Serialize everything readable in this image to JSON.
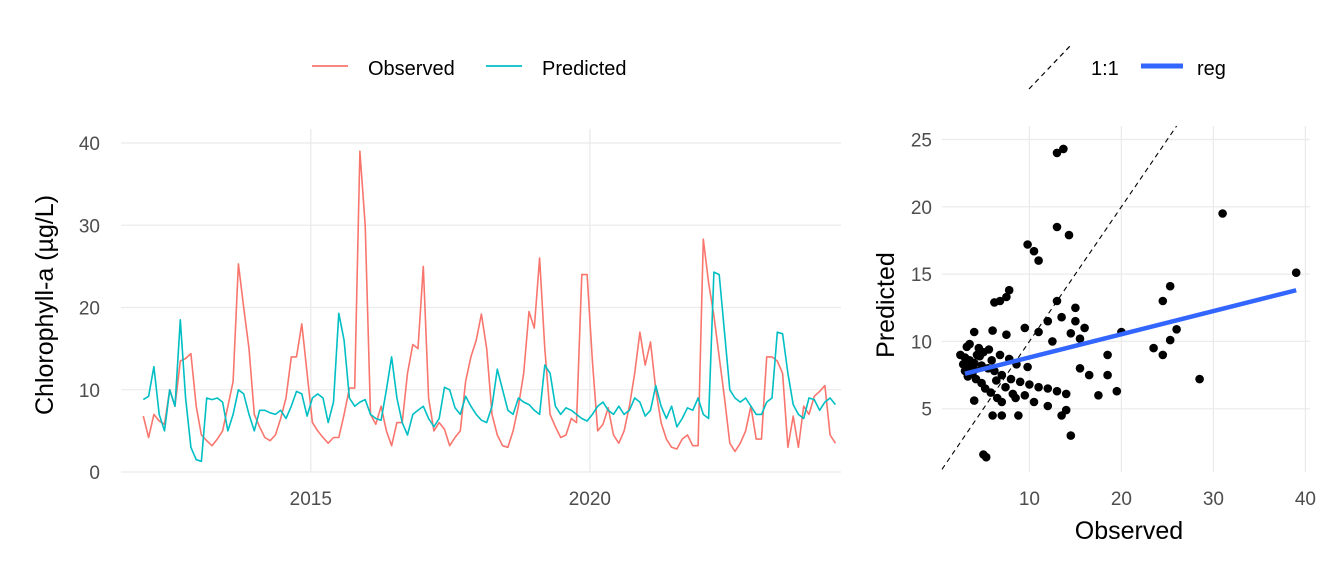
{
  "chart_data": [
    {
      "type": "line",
      "title": "",
      "xlabel": "",
      "ylabel": "Chlorophyll-a (µg/L)",
      "ylim": [
        0,
        40
      ],
      "xlim": [
        2011.6,
        2024.5
      ],
      "x_ticks": [
        "2015",
        "2020"
      ],
      "x_tick_values": [
        2015,
        2020
      ],
      "y_ticks": [
        "0",
        "10",
        "20",
        "30",
        "40"
      ],
      "grid": true,
      "legend": "top",
      "x": [
        2012.0,
        2012.1,
        2012.2,
        2012.3,
        2012.4,
        2012.5,
        2012.6,
        2012.7,
        2012.8,
        2012.9,
        2013.0,
        2013.1,
        2013.2,
        2013.3,
        2013.4,
        2013.5,
        2013.6,
        2013.7,
        2013.8,
        2013.9,
        2014.0,
        2014.1,
        2014.2,
        2014.3,
        2014.4,
        2014.5,
        2014.6,
        2014.7,
        2014.8,
        2014.9,
        2015.0,
        2015.1,
        2015.2,
        2015.3,
        2015.4,
        2015.5,
        2015.6,
        2015.7,
        2015.8,
        2015.9,
        2016.0,
        2016.1,
        2016.2,
        2016.3,
        2016.4,
        2016.5,
        2016.6,
        2016.7,
        2016.8,
        2016.9,
        2017.0,
        2017.1,
        2017.2,
        2017.3,
        2017.4,
        2017.5,
        2017.6,
        2017.7,
        2017.8,
        2017.9,
        2018.0,
        2018.1,
        2018.2,
        2018.3,
        2018.4,
        2018.5,
        2018.6,
        2018.7,
        2018.8,
        2018.9,
        2019.0,
        2019.1,
        2019.2,
        2019.3,
        2019.4,
        2019.5,
        2019.6,
        2019.7,
        2019.8,
        2019.9,
        2020.0,
        2020.1,
        2020.2,
        2020.3,
        2020.4,
        2020.5,
        2020.6,
        2020.7,
        2020.8,
        2020.9,
        2021.0,
        2021.1,
        2021.2,
        2021.3,
        2021.4,
        2021.5,
        2021.6,
        2021.7,
        2021.8,
        2021.9,
        2022.0,
        2022.1,
        2022.2,
        2022.3,
        2022.4,
        2022.5,
        2022.6,
        2022.7,
        2022.8,
        2022.9,
        2023.0,
        2023.1,
        2023.2,
        2023.3,
        2023.4,
        2023.5,
        2023.6,
        2023.7,
        2023.8,
        2023.9
      ],
      "series": [
        {
          "name": "Observed",
          "color": "#F8766D",
          "values": [
            6.8,
            4.2,
            7.0,
            6.2,
            5.8,
            10.0,
            8.0,
            13.5,
            13.8,
            14.4,
            8.0,
            4.5,
            3.8,
            3.2,
            4.0,
            5.0,
            8.0,
            11.0,
            25.3,
            20.0,
            15.0,
            7.0,
            5.5,
            4.2,
            3.8,
            4.5,
            6.5,
            9.0,
            14.0,
            14.0,
            18.0,
            12.0,
            6.0,
            5.0,
            4.2,
            3.5,
            4.2,
            4.2,
            7.0,
            10.2,
            10.2,
            39.0,
            30.0,
            7.0,
            5.8,
            8.0,
            5.0,
            3.2,
            6.0,
            6.0,
            12.0,
            15.5,
            15.0,
            25.0,
            9.0,
            5.0,
            6.0,
            5.2,
            3.2,
            4.2,
            5.0,
            11.0,
            14.0,
            16.0,
            19.2,
            15.0,
            7.0,
            4.5,
            3.2,
            3.0,
            5.0,
            8.0,
            12.0,
            19.5,
            17.5,
            26.0,
            15.0,
            7.0,
            5.5,
            4.2,
            4.5,
            6.5,
            6.0,
            24.0,
            24.0,
            13.5,
            5.0,
            5.8,
            7.8,
            4.5,
            3.5,
            5.0,
            8.0,
            12.0,
            17.0,
            13.0,
            15.8,
            10.0,
            6.0,
            4.0,
            3.0,
            2.8,
            4.0,
            4.5,
            3.2,
            3.2,
            28.3,
            23.0,
            19.0,
            14.0,
            9.0,
            3.5,
            2.5,
            3.5,
            5.0,
            8.0,
            4.0,
            4.0,
            14.0,
            14.0
          ],
          "values_tail": [
            13.5,
            12.0,
            3.0,
            6.8,
            3.0,
            8.0,
            7.0,
            9.2,
            9.8,
            10.5,
            4.5,
            3.5
          ]
        },
        {
          "name": "Predicted",
          "color": "#00BFC4",
          "values": [
            8.8,
            9.2,
            12.8,
            7.0,
            5.0,
            10.0,
            8.0,
            18.5,
            9.0,
            3.0,
            1.5,
            1.3,
            9.0,
            8.8,
            9.0,
            8.5,
            5.0,
            7.0,
            10.0,
            9.5,
            7.0,
            5.0,
            7.5,
            7.5,
            7.2,
            7.0,
            7.5,
            6.5,
            8.0,
            9.8,
            9.5,
            6.8,
            9.0,
            9.5,
            9.0,
            6.0,
            8.5,
            19.3,
            16.0,
            9.0,
            8.0,
            8.5,
            8.8,
            7.0,
            6.5,
            6.3,
            10.0,
            14.0,
            9.0,
            6.0,
            4.5,
            7.0,
            7.5,
            8.0,
            6.5,
            5.5,
            6.5,
            10.3,
            10.0,
            7.8,
            7.0,
            9.2,
            8.0,
            7.0,
            6.3,
            6.0,
            8.0,
            12.5,
            10.0,
            7.5,
            7.0,
            9.0,
            8.5,
            8.2,
            7.5,
            7.0,
            13.0,
            12.0,
            8.0,
            7.0,
            7.8,
            7.5,
            7.0,
            6.5,
            6.2,
            7.0,
            8.0,
            8.5,
            7.5,
            7.0,
            8.0,
            7.0,
            7.5,
            9.0,
            8.5,
            6.8,
            7.5,
            10.5,
            8.0,
            6.5,
            8.0,
            5.5,
            6.5,
            7.8,
            7.5,
            9.0,
            7.0,
            6.5,
            24.3,
            24.0,
            17.0,
            10.0,
            9.0,
            8.5,
            9.0,
            8.0,
            7.0,
            7.0,
            8.5,
            9.0
          ],
          "values_tail": [
            17.0,
            16.8,
            12.0,
            8.2,
            7.0,
            6.5,
            9.0,
            8.8,
            7.5,
            8.5,
            9.0,
            8.2
          ]
        }
      ]
    },
    {
      "type": "scatter",
      "title": "",
      "xlabel": "Observed",
      "ylabel": "Predicted",
      "xlim": [
        0.5,
        40.5
      ],
      "ylim": [
        0.3,
        26.0
      ],
      "x_ticks": [
        "10",
        "20",
        "30",
        "40"
      ],
      "y_ticks": [
        "5",
        "10",
        "15",
        "20",
        "25"
      ],
      "grid": true,
      "legend": "top",
      "legend_entries": [
        {
          "name": "1:1",
          "style": "dashed",
          "color": "#000000"
        },
        {
          "name": "reg",
          "style": "solid",
          "color": "#3366FF"
        }
      ],
      "reference_line": {
        "name": "1:1",
        "slope": 1,
        "intercept": 0
      },
      "regression_line": {
        "name": "reg",
        "x": [
          3.0,
          39.0
        ],
        "y": [
          7.6,
          13.8
        ]
      },
      "points": [
        [
          13.0,
          24.0
        ],
        [
          13.7,
          24.3
        ],
        [
          31.0,
          19.5
        ],
        [
          13.0,
          18.5
        ],
        [
          14.3,
          17.9
        ],
        [
          9.8,
          17.2
        ],
        [
          10.5,
          16.7
        ],
        [
          11.0,
          16.0
        ],
        [
          7.8,
          13.8
        ],
        [
          7.5,
          13.3
        ],
        [
          6.8,
          13.0
        ],
        [
          6.2,
          12.9
        ],
        [
          15.0,
          12.5
        ],
        [
          13.0,
          13.0
        ],
        [
          24.5,
          13.0
        ],
        [
          25.3,
          14.1
        ],
        [
          39.0,
          15.1
        ],
        [
          12.0,
          11.5
        ],
        [
          13.5,
          11.8
        ],
        [
          15.0,
          11.5
        ],
        [
          16.0,
          11.0
        ],
        [
          20.0,
          10.7
        ],
        [
          26.0,
          10.9
        ],
        [
          25.3,
          10.1
        ],
        [
          23.5,
          9.5
        ],
        [
          24.5,
          9.0
        ],
        [
          18.5,
          9.0
        ],
        [
          12.5,
          10.0
        ],
        [
          11.0,
          10.7
        ],
        [
          9.5,
          11.0
        ],
        [
          14.5,
          10.6
        ],
        [
          15.5,
          10.2
        ],
        [
          4.0,
          10.7
        ],
        [
          6.0,
          10.8
        ],
        [
          7.5,
          10.5
        ],
        [
          3.5,
          9.8
        ],
        [
          4.5,
          9.5
        ],
        [
          5.0,
          9.2
        ],
        [
          2.5,
          9.0
        ],
        [
          3.0,
          8.8
        ],
        [
          3.5,
          8.6
        ],
        [
          4.0,
          8.4
        ],
        [
          4.8,
          8.2
        ],
        [
          5.5,
          8.0
        ],
        [
          6.2,
          7.8
        ],
        [
          7.0,
          7.5
        ],
        [
          8.0,
          7.2
        ],
        [
          9.0,
          7.0
        ],
        [
          10.0,
          6.8
        ],
        [
          11.0,
          6.6
        ],
        [
          12.0,
          6.5
        ],
        [
          13.0,
          6.3
        ],
        [
          14.0,
          6.1
        ],
        [
          15.5,
          8.0
        ],
        [
          16.5,
          7.5
        ],
        [
          17.5,
          6.0
        ],
        [
          19.5,
          6.3
        ],
        [
          18.5,
          7.5
        ],
        [
          28.5,
          7.2
        ],
        [
          3.0,
          7.8
        ],
        [
          3.8,
          7.6
        ],
        [
          4.2,
          7.2
        ],
        [
          4.8,
          6.9
        ],
        [
          5.2,
          6.5
        ],
        [
          5.8,
          6.2
        ],
        [
          6.5,
          5.8
        ],
        [
          7.0,
          5.5
        ],
        [
          8.5,
          5.8
        ],
        [
          9.5,
          6.0
        ],
        [
          10.5,
          5.5
        ],
        [
          12.0,
          5.2
        ],
        [
          14.0,
          4.9
        ],
        [
          6.0,
          4.5
        ],
        [
          7.0,
          4.5
        ],
        [
          4.0,
          5.6
        ],
        [
          8.8,
          4.5
        ],
        [
          13.5,
          4.5
        ],
        [
          14.5,
          3.0
        ],
        [
          5.0,
          1.6
        ],
        [
          5.3,
          1.4
        ],
        [
          3.2,
          9.6
        ],
        [
          4.3,
          9.0
        ],
        [
          5.6,
          9.4
        ],
        [
          6.8,
          9.0
        ],
        [
          7.8,
          8.7
        ],
        [
          8.6,
          8.3
        ],
        [
          9.8,
          8.1
        ],
        [
          3.6,
          8.1
        ],
        [
          4.6,
          8.9
        ],
        [
          5.9,
          8.6
        ],
        [
          6.4,
          7.1
        ],
        [
          7.4,
          6.6
        ],
        [
          8.2,
          6.1
        ],
        [
          2.8,
          8.3
        ],
        [
          3.3,
          7.4
        ],
        [
          4.0,
          7.9
        ]
      ]
    }
  ]
}
